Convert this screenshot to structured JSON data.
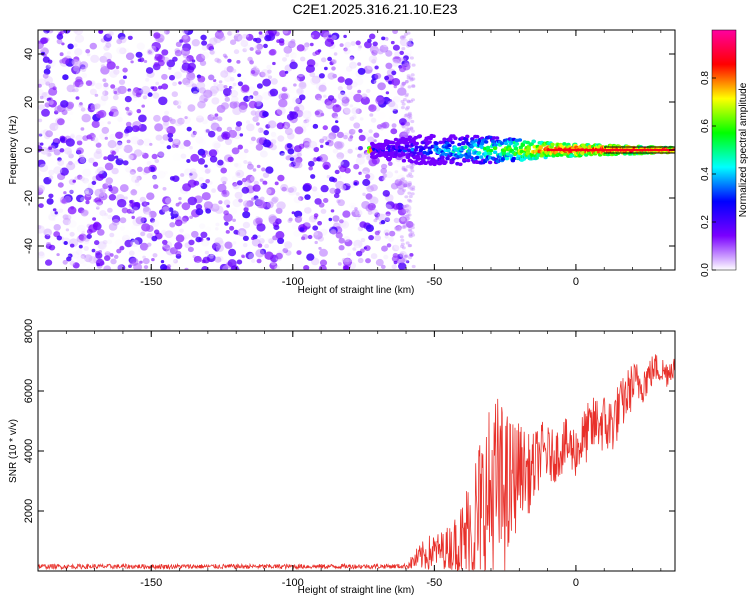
{
  "figure": {
    "title": "C2E1.2025.316.21.10.E23"
  },
  "chart_data": [
    {
      "type": "heatmap",
      "name": "spectrogram",
      "xlabel": "Height of straight line (km)",
      "ylabel": "Frequency (Hz)",
      "xlim": [
        -190,
        35
      ],
      "ylim": [
        -50,
        50
      ],
      "xticks": [
        -150,
        -100,
        -50,
        0
      ],
      "xtick_labels": [
        "-150",
        "-100",
        "-50",
        "0"
      ],
      "yticks": [
        -40,
        -20,
        0,
        20,
        40
      ],
      "ytick_labels": [
        "-40",
        "-20",
        "0",
        "20",
        "40"
      ],
      "noise_region_x": [
        -190,
        -58
      ],
      "signal_line": {
        "frequency": 0,
        "start_x": -73,
        "end_x": 35,
        "description_values": [
          {
            "x": -72,
            "spread": 3,
            "amplitude": 0.2
          },
          {
            "x": -55,
            "spread": 6,
            "amplitude": 0.3
          },
          {
            "x": -40,
            "spread": 6,
            "amplitude": 0.45
          },
          {
            "x": -25,
            "spread": 5,
            "amplitude": 0.6
          },
          {
            "x": -10,
            "spread": 3,
            "amplitude": 0.85
          },
          {
            "x": 10,
            "spread": 2,
            "amplitude": 0.9
          },
          {
            "x": 35,
            "spread": 1,
            "amplitude": 0.9
          }
        ]
      },
      "colorbar": {
        "label": "Normalized spectral amplitude",
        "range": [
          0,
          1
        ],
        "ticks": [
          0.0,
          0.2,
          0.4,
          0.6,
          0.8
        ],
        "tick_labels": [
          "0.0",
          "0.2",
          "0.4",
          "0.6",
          "0.8"
        ],
        "colors": [
          "#ffffff",
          "#7a00ff",
          "#0000ff",
          "#00ffff",
          "#00ff00",
          "#ffff00",
          "#ff0000",
          "#ff00a0"
        ]
      }
    },
    {
      "type": "line",
      "name": "snr",
      "xlabel": "Height of straight line (km)",
      "ylabel": "SNR (10 * v/v)",
      "xlim": [
        -190,
        35
      ],
      "ylim": [
        0,
        8000
      ],
      "xticks": [
        -150,
        -100,
        -50,
        0
      ],
      "xtick_labels": [
        "-150",
        "-100",
        "-50",
        "0"
      ],
      "yticks": [
        2000,
        4000,
        6000,
        8000
      ],
      "ytick_labels": [
        "2000",
        "4000",
        "6000",
        "8000"
      ],
      "color": "#e8302a",
      "series": [
        {
          "name": "SNR",
          "x": [
            -190,
            -150,
            -100,
            -60,
            -56,
            -52,
            -48,
            -44,
            -40,
            -36,
            -32,
            -28,
            -24,
            -20,
            -16,
            -12,
            -8,
            -4,
            0,
            4,
            8,
            12,
            16,
            20,
            24,
            28,
            32,
            35
          ],
          "center": [
            150,
            150,
            150,
            160,
            400,
            600,
            700,
            800,
            1000,
            1400,
            2200,
            2800,
            2500,
            3500,
            3200,
            4000,
            3800,
            4200,
            4000,
            4600,
            5000,
            4800,
            5500,
            6200,
            6300,
            6800,
            6600,
            6900
          ],
          "spread": [
            80,
            80,
            80,
            80,
            400,
            600,
            600,
            800,
            1400,
            2600,
            3000,
            3200,
            2800,
            1500,
            1300,
            1000,
            900,
            900,
            900,
            1000,
            1000,
            1100,
            900,
            800,
            700,
            500,
            500,
            400
          ]
        }
      ]
    }
  ]
}
